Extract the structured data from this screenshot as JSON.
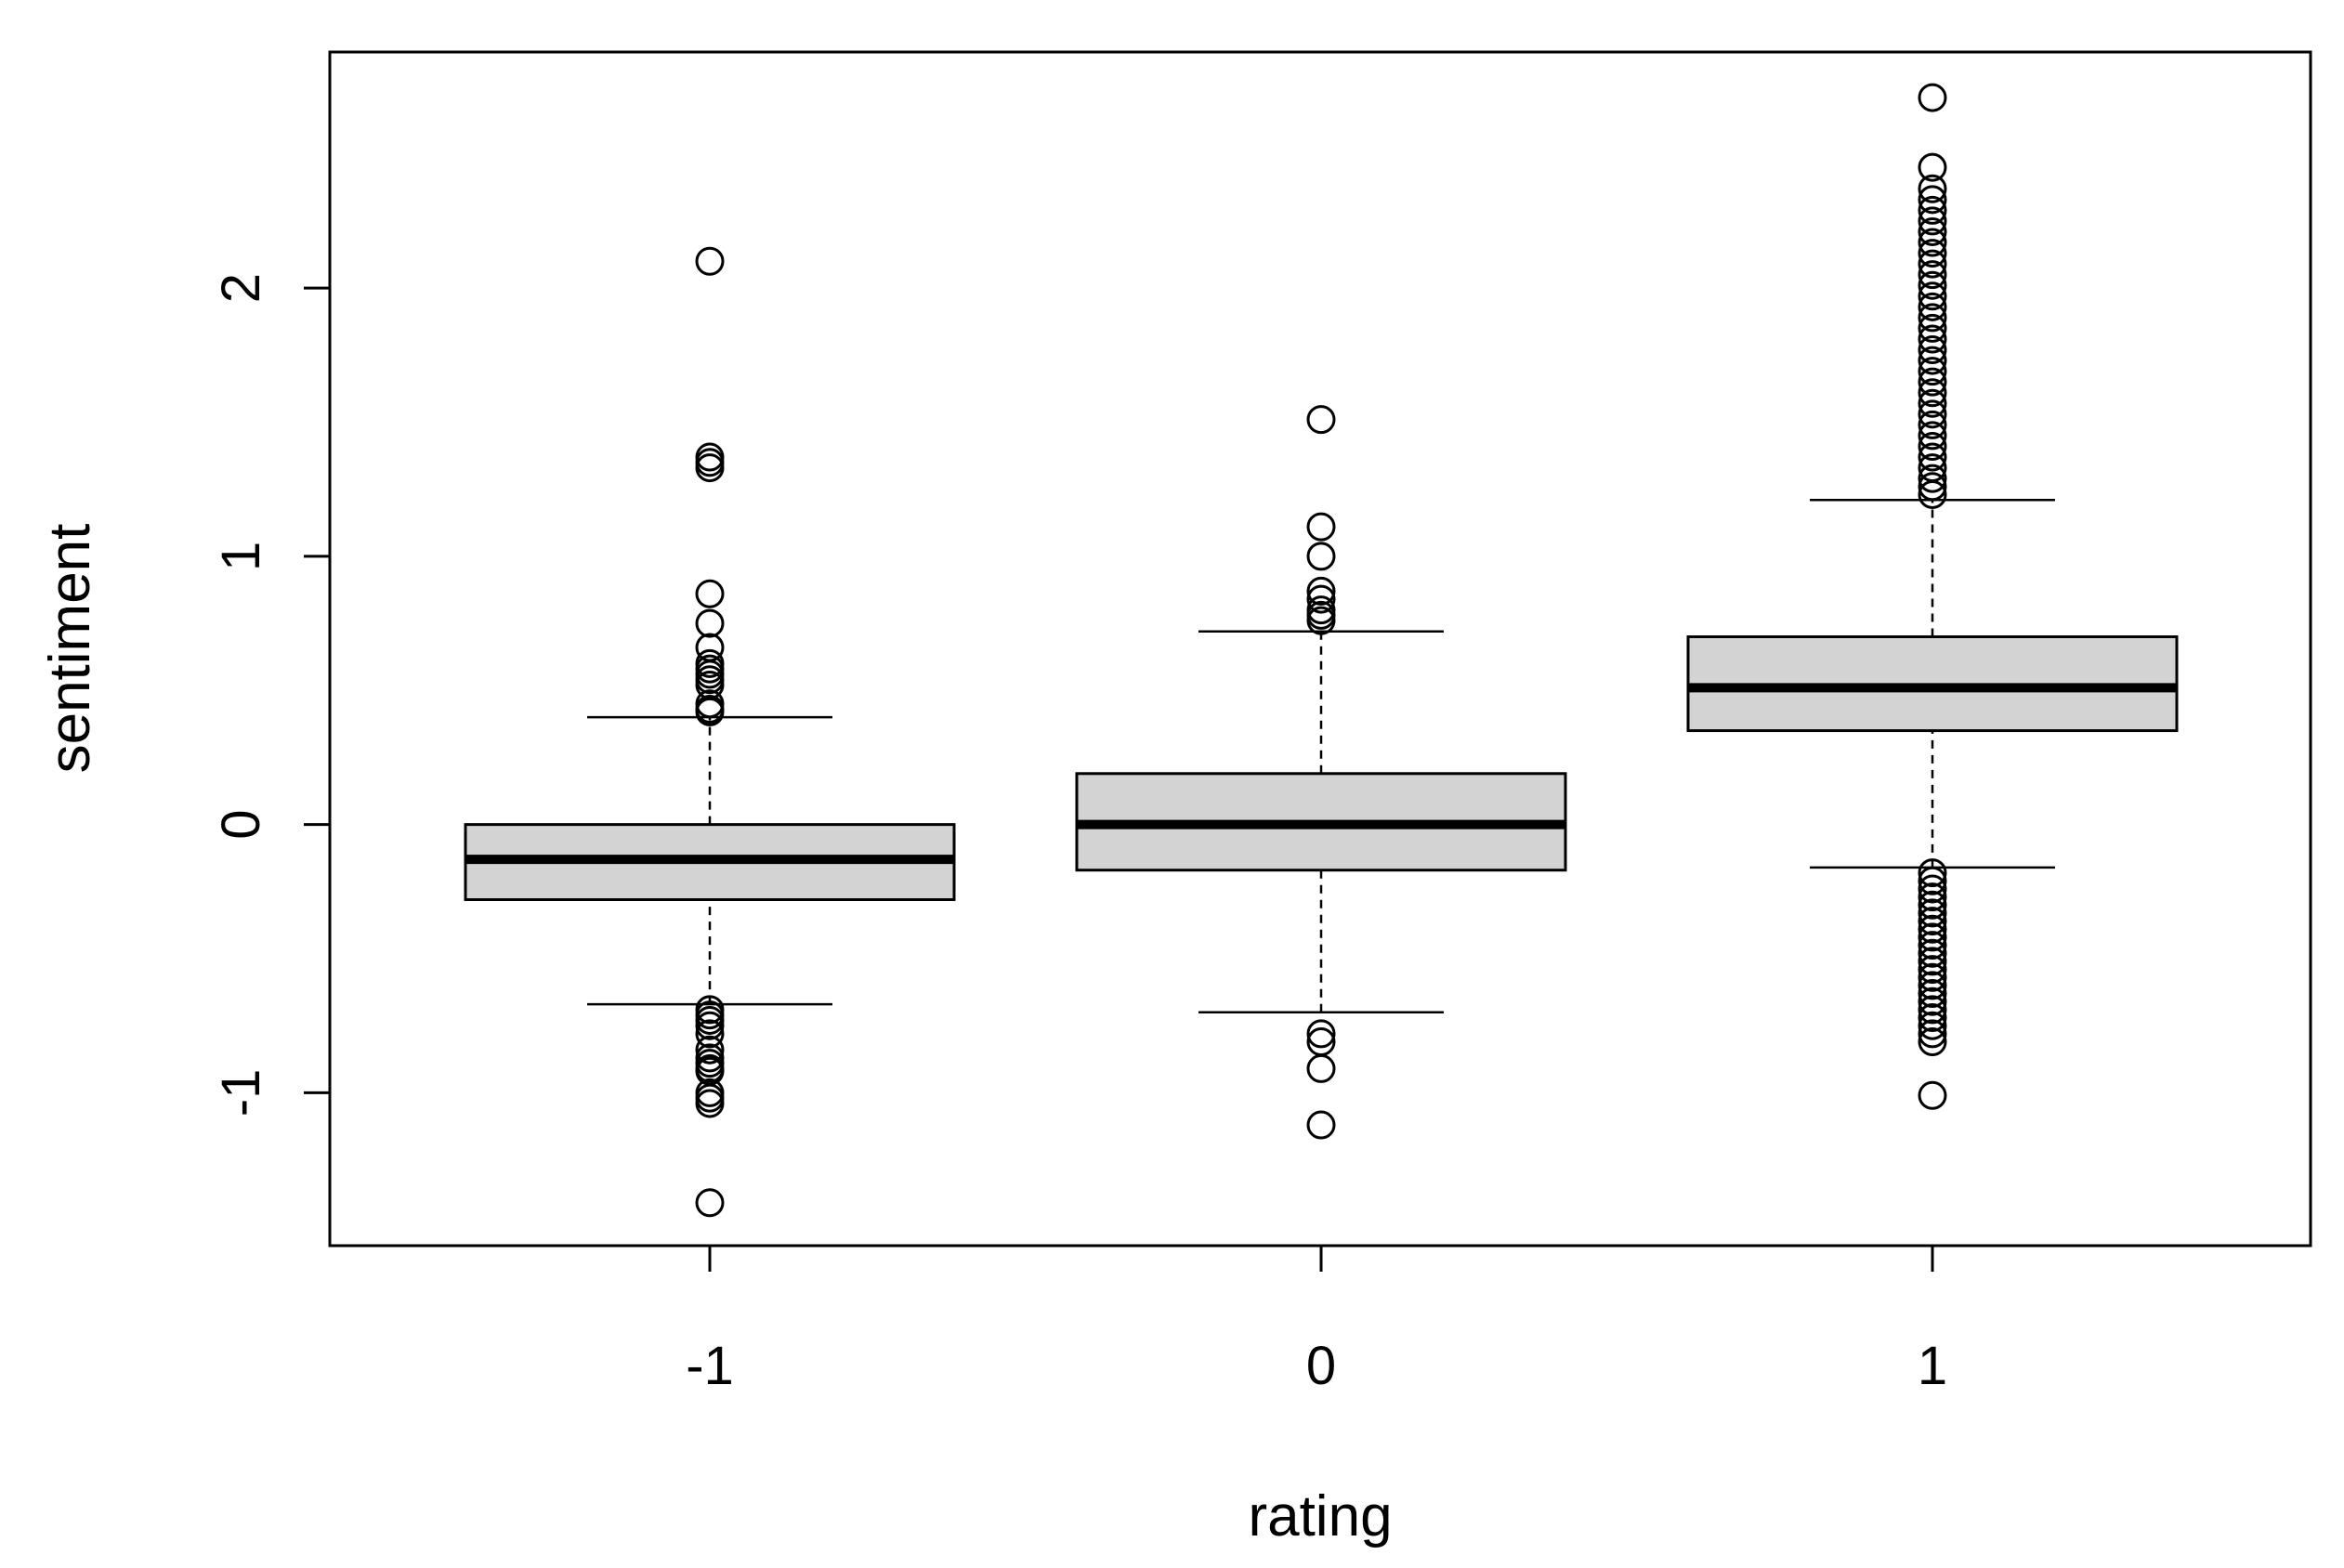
{
  "chart_data": {
    "type": "boxplot",
    "xlabel": "rating",
    "ylabel": "sentiment",
    "ylim": [
      -1.57,
      2.88
    ],
    "yticks": [
      -1,
      0,
      1,
      2
    ],
    "ytick_labels": [
      "-1",
      "0",
      "1",
      "2"
    ],
    "categories": [
      "-1",
      "0",
      "1"
    ],
    "box_fill": "#d3d3d3",
    "boxes": [
      {
        "category": "-1",
        "whisker_low": -0.67,
        "q1": -0.28,
        "median": -0.13,
        "q3": 0.0,
        "whisker_high": 0.4,
        "outliers": [
          2.1,
          1.37,
          1.35,
          1.33,
          0.86,
          0.75,
          0.66,
          0.6,
          0.58,
          0.56,
          0.54,
          0.52,
          0.45,
          0.43,
          0.42,
          -0.69,
          -0.71,
          -0.73,
          -0.75,
          -0.78,
          -0.84,
          -0.87,
          -0.89,
          -0.91,
          -0.92,
          -1.0,
          -1.02,
          -1.04,
          -1.41
        ]
      },
      {
        "category": "0",
        "whisker_low": -0.7,
        "q1": -0.17,
        "median": 0.0,
        "q3": 0.19,
        "whisker_high": 0.72,
        "outliers": [
          1.51,
          1.11,
          1.0,
          0.87,
          0.84,
          0.8,
          0.78,
          0.76,
          -0.78,
          -0.81,
          -0.91,
          -1.12
        ]
      },
      {
        "category": "1",
        "whisker_low": -0.16,
        "q1": 0.35,
        "median": 0.51,
        "q3": 0.7,
        "whisker_high": 1.21,
        "outliers": [
          2.71,
          2.45,
          2.37,
          2.33,
          2.29,
          2.25,
          2.21,
          2.17,
          2.13,
          2.09,
          2.05,
          2.01,
          1.97,
          1.93,
          1.89,
          1.85,
          1.81,
          1.77,
          1.73,
          1.69,
          1.65,
          1.61,
          1.57,
          1.53,
          1.49,
          1.45,
          1.41,
          1.37,
          1.33,
          1.29,
          1.26,
          1.23,
          -0.18,
          -0.21,
          -0.24,
          -0.27,
          -0.3,
          -0.33,
          -0.36,
          -0.39,
          -0.42,
          -0.45,
          -0.48,
          -0.51,
          -0.54,
          -0.57,
          -0.6,
          -0.63,
          -0.66,
          -0.69,
          -0.72,
          -0.75,
          -0.78,
          -0.81,
          -1.01
        ]
      }
    ]
  }
}
